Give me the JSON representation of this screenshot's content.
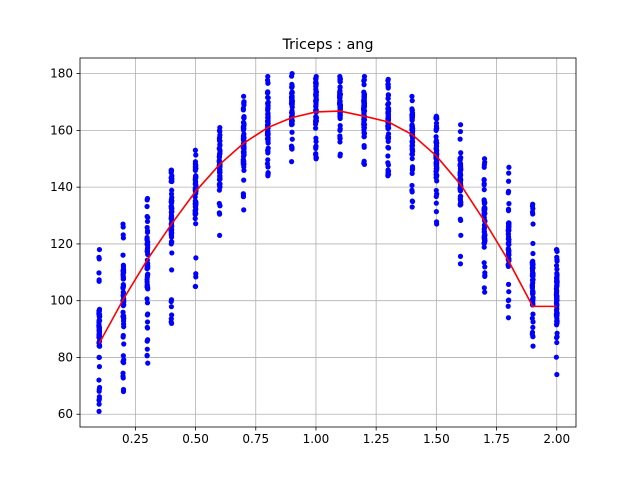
{
  "chart_data": {
    "type": "scatter",
    "title": "Triceps : ang",
    "xlabel": "",
    "ylabel": "",
    "xlim": [
      0.02,
      2.08
    ],
    "ylim": [
      55.5,
      185.5
    ],
    "x_ticks": [
      0.25,
      0.5,
      0.75,
      1.0,
      1.25,
      1.5,
      1.75,
      2.0
    ],
    "x_tick_labels": [
      "0.25",
      "0.50",
      "0.75",
      "1.00",
      "1.25",
      "1.50",
      "1.75",
      "2.00"
    ],
    "y_ticks": [
      60,
      80,
      100,
      120,
      140,
      160,
      180
    ],
    "y_tick_labels": [
      "60",
      "80",
      "100",
      "120",
      "140",
      "160",
      "180"
    ],
    "grid": true,
    "colors": {
      "points": "#0000ff",
      "fit": "#ff0000",
      "grid": "#b0b0b0"
    },
    "scatter_columns": [
      {
        "x": 0.1,
        "min": 61,
        "max": 118,
        "q1": 84,
        "q3": 97
      },
      {
        "x": 0.2,
        "min": 68,
        "max": 127,
        "q1": 92,
        "q3": 112
      },
      {
        "x": 0.3,
        "min": 78,
        "max": 136,
        "q1": 104,
        "q3": 123
      },
      {
        "x": 0.4,
        "min": 92,
        "max": 146,
        "q1": 118,
        "q3": 135
      },
      {
        "x": 0.5,
        "min": 105,
        "max": 153,
        "q1": 130,
        "q3": 145
      },
      {
        "x": 0.6,
        "min": 123,
        "max": 161,
        "q1": 140,
        "q3": 154
      },
      {
        "x": 0.7,
        "min": 132,
        "max": 172,
        "q1": 148,
        "q3": 162
      },
      {
        "x": 0.8,
        "min": 144,
        "max": 179,
        "q1": 157,
        "q3": 170
      },
      {
        "x": 0.9,
        "min": 149,
        "max": 180,
        "q1": 162,
        "q3": 173
      },
      {
        "x": 1.0,
        "min": 150,
        "max": 179,
        "q1": 163,
        "q3": 174
      },
      {
        "x": 1.1,
        "min": 151,
        "max": 179,
        "q1": 164,
        "q3": 174
      },
      {
        "x": 1.2,
        "min": 148,
        "max": 179,
        "q1": 161,
        "q3": 172
      },
      {
        "x": 1.3,
        "min": 144,
        "max": 178,
        "q1": 157,
        "q3": 168
      },
      {
        "x": 1.4,
        "min": 133,
        "max": 172,
        "q1": 150,
        "q3": 162
      },
      {
        "x": 1.5,
        "min": 127,
        "max": 165,
        "q1": 142,
        "q3": 155
      },
      {
        "x": 1.6,
        "min": 113,
        "max": 162,
        "q1": 133,
        "q3": 148
      },
      {
        "x": 1.7,
        "min": 103,
        "max": 150,
        "q1": 120,
        "q3": 136
      },
      {
        "x": 1.8,
        "min": 94,
        "max": 147,
        "q1": 112,
        "q3": 128
      },
      {
        "x": 1.9,
        "min": 84,
        "max": 134,
        "q1": 98,
        "q3": 114
      },
      {
        "x": 2.0,
        "min": 74,
        "max": 118,
        "q1": 92,
        "q3": 108
      }
    ],
    "fit_line": {
      "x": [
        0.1,
        0.2,
        0.3,
        0.4,
        0.5,
        0.6,
        0.7,
        0.8,
        0.9,
        1.0,
        1.1,
        1.2,
        1.3,
        1.4,
        1.5,
        1.6,
        1.7,
        1.8,
        1.9,
        2.0
      ],
      "y": [
        85,
        100.5,
        114.5,
        127,
        138.5,
        148,
        155.5,
        161,
        164.5,
        166.5,
        166.8,
        165,
        163,
        158.5,
        151,
        141,
        128,
        114,
        98,
        98
      ]
    }
  }
}
